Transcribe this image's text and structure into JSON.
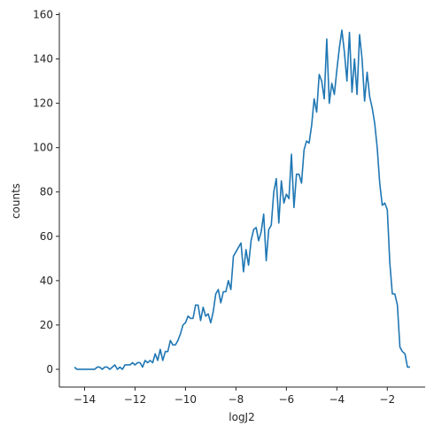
{
  "chart_data": {
    "type": "line",
    "xlabel": "logJ2",
    "ylabel": "counts",
    "color": "#1f77b4",
    "x": [
      -14.4,
      -14.3,
      -14.2,
      -14.1,
      -14.0,
      -13.9,
      -13.8,
      -13.7,
      -13.6,
      -13.5,
      -13.4,
      -13.3,
      -13.2,
      -13.1,
      -13.0,
      -12.9,
      -12.8,
      -12.7,
      -12.6,
      -12.5,
      -12.4,
      -12.3,
      -12.2,
      -12.1,
      -12.0,
      -11.9,
      -11.8,
      -11.7,
      -11.6,
      -11.5,
      -11.4,
      -11.3,
      -11.2,
      -11.1,
      -11.0,
      -10.9,
      -10.8,
      -10.7,
      -10.6,
      -10.5,
      -10.4,
      -10.3,
      -10.2,
      -10.1,
      -10.0,
      -9.9,
      -9.8,
      -9.7,
      -9.6,
      -9.5,
      -9.4,
      -9.3,
      -9.2,
      -9.1,
      -9.0,
      -8.9,
      -8.8,
      -8.7,
      -8.6,
      -8.5,
      -8.4,
      -8.3,
      -8.2,
      -8.1,
      -8.0,
      -7.9,
      -7.8,
      -7.7,
      -7.6,
      -7.5,
      -7.4,
      -7.3,
      -7.2,
      -7.1,
      -7.0,
      -6.9,
      -6.8,
      -6.7,
      -6.6,
      -6.5,
      -6.4,
      -6.3,
      -6.2,
      -6.1,
      -6.0,
      -5.9,
      -5.8,
      -5.7,
      -5.6,
      -5.5,
      -5.4,
      -5.3,
      -5.2,
      -5.1,
      -5.0,
      -4.9,
      -4.8,
      -4.7,
      -4.6,
      -4.5,
      -4.4,
      -4.3,
      -4.2,
      -4.1,
      -4.0,
      -3.9,
      -3.8,
      -3.7,
      -3.6,
      -3.5,
      -3.4,
      -3.3,
      -3.2,
      -3.1,
      -3.0,
      -2.9,
      -2.8,
      -2.7,
      -2.6,
      -2.5,
      -2.4,
      -2.3,
      -2.2,
      -2.1,
      -2.0,
      -1.9,
      -1.8,
      -1.7,
      -1.6,
      -1.5,
      -1.4,
      -1.3,
      -1.2,
      -1.1
    ],
    "values": [
      1,
      0,
      0,
      0,
      0,
      0,
      0,
      0,
      0,
      1,
      1,
      0,
      1,
      1,
      0,
      1,
      2,
      0,
      1,
      0,
      2,
      2,
      2,
      3,
      2,
      3,
      3,
      1,
      4,
      3,
      4,
      3,
      7,
      4,
      9,
      4,
      8,
      8,
      13,
      11,
      11,
      13,
      16,
      20,
      21,
      24,
      23,
      23,
      29,
      29,
      22,
      28,
      24,
      25,
      21,
      26,
      34,
      36,
      30,
      35,
      35,
      40,
      36,
      51,
      53,
      55,
      57,
      44,
      54,
      47,
      58,
      63,
      64,
      58,
      62,
      70,
      49,
      63,
      65,
      80,
      86,
      66,
      85,
      75,
      79,
      77,
      97,
      73,
      88,
      88,
      84,
      99,
      103,
      102,
      110,
      122,
      116,
      133,
      130,
      122,
      149,
      120,
      129,
      124,
      135,
      145,
      153,
      143,
      130,
      152,
      125,
      140,
      124,
      151,
      140,
      121,
      134,
      123,
      118,
      111,
      100,
      84,
      74,
      75,
      72,
      48,
      34,
      34,
      29,
      10,
      8,
      7,
      1,
      1
    ],
    "xlim": [
      -15,
      -0.5
    ],
    "ylim": [
      -8,
      161
    ],
    "xticks": [
      {
        "value": -14,
        "label": "−14"
      },
      {
        "value": -12,
        "label": "−12"
      },
      {
        "value": -10,
        "label": "−10"
      },
      {
        "value": -8,
        "label": "−8"
      },
      {
        "value": -6,
        "label": "−6"
      },
      {
        "value": -4,
        "label": "−4"
      },
      {
        "value": -2,
        "label": "−2"
      }
    ],
    "yticks": [
      0,
      20,
      40,
      60,
      80,
      100,
      120,
      140,
      160
    ]
  }
}
